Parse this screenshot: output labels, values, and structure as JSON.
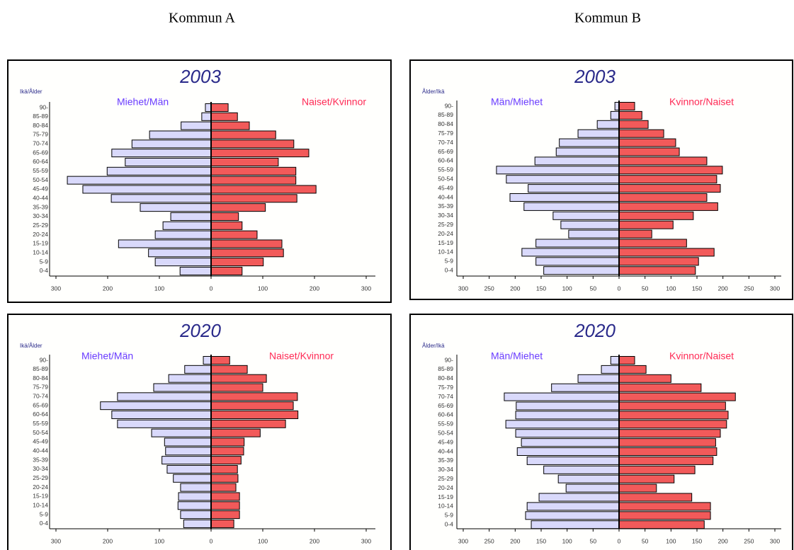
{
  "headers": [
    "Kommun A",
    "Kommun B"
  ],
  "chart_data": [
    {
      "type": "bar",
      "orientation": "horizontal",
      "title": "2003",
      "ylabel": "Ikä/Ålder",
      "categories": [
        "90-",
        "85-89",
        "80-84",
        "75-79",
        "70-74",
        "65-69",
        "60-64",
        "55-59",
        "50-54",
        "45-49",
        "40-44",
        "35-39",
        "30-34",
        "25-29",
        "20-24",
        "15-19",
        "10-14",
        "5-9",
        "0-4"
      ],
      "series": [
        {
          "name": "Miehet/Män",
          "color": "#d9d9fb",
          "side": "left",
          "values": [
            11,
            18,
            58,
            119,
            153,
            192,
            166,
            201,
            278,
            248,
            193,
            137,
            78,
            93,
            108,
            179,
            121,
            108,
            60
          ]
        },
        {
          "name": "Naiset/Kvinnor",
          "color": "#f25a5a",
          "side": "right",
          "values": [
            33,
            51,
            74,
            125,
            160,
            189,
            130,
            164,
            164,
            203,
            166,
            105,
            53,
            60,
            89,
            137,
            140,
            101,
            60
          ]
        }
      ],
      "xlim": [
        -300,
        300
      ],
      "xticks": [
        {
          "value": -300,
          "label": "300"
        },
        {
          "value": -200,
          "label": "200"
        },
        {
          "value": -100,
          "label": "100"
        },
        0,
        100,
        200,
        300
      ]
    },
    {
      "type": "bar",
      "orientation": "horizontal",
      "title": "2003",
      "ylabel": "Ålder/Ikä",
      "categories": [
        "90-",
        "85-89",
        "80-84",
        "75-79",
        "70-74",
        "65-69",
        "60-64",
        "55-59",
        "50-54",
        "45-49",
        "40-44",
        "35-39",
        "30-34",
        "25-29",
        "20-24",
        "15-19",
        "10-14",
        "5-9",
        "0-4"
      ],
      "series": [
        {
          "name": "Män/Miehet",
          "color": "#d9d9fb",
          "side": "left",
          "values": [
            8,
            16,
            42,
            79,
            115,
            121,
            162,
            236,
            217,
            175,
            210,
            183,
            127,
            112,
            97,
            160,
            187,
            160,
            145
          ]
        },
        {
          "name": "Kvinnor/Naiset",
          "color": "#f25a5a",
          "side": "right",
          "values": [
            30,
            44,
            56,
            86,
            109,
            116,
            169,
            199,
            188,
            195,
            169,
            190,
            143,
            104,
            63,
            130,
            183,
            153,
            147
          ]
        }
      ],
      "xlim": [
        -300,
        300
      ],
      "xticks": [
        {
          "value": -300,
          "label": "300"
        },
        {
          "value": -250,
          "label": "250"
        },
        {
          "value": -200,
          "label": "200"
        },
        {
          "value": -150,
          "label": "150"
        },
        {
          "value": -100,
          "label": "100"
        },
        {
          "value": -50,
          "label": "50"
        },
        0,
        50,
        100,
        150,
        200,
        250,
        300
      ]
    },
    {
      "type": "bar",
      "orientation": "horizontal",
      "title": "2020",
      "ylabel": "Ikä/Ålder",
      "categories": [
        "90-",
        "85-89",
        "80-84",
        "75-79",
        "70-74",
        "65-69",
        "60-64",
        "55-59",
        "50-54",
        "45-49",
        "40-44",
        "35-39",
        "30-34",
        "25-29",
        "20-24",
        "15-19",
        "10-14",
        "5-9",
        "0-4"
      ],
      "series": [
        {
          "name": "Miehet/Män",
          "color": "#d9d9fb",
          "side": "left",
          "values": [
            15,
            51,
            82,
            111,
            181,
            214,
            192,
            181,
            115,
            90,
            88,
            95,
            85,
            73,
            59,
            63,
            64,
            59,
            53
          ]
        },
        {
          "name": "Naiset/Kvinnor",
          "color": "#f25a5a",
          "side": "right",
          "values": [
            36,
            70,
            107,
            100,
            167,
            159,
            168,
            144,
            95,
            64,
            63,
            58,
            51,
            52,
            48,
            55,
            55,
            55,
            44
          ]
        }
      ],
      "xlim": [
        -300,
        300
      ],
      "xticks": [
        {
          "value": -300,
          "label": "300"
        },
        {
          "value": -200,
          "label": "200"
        },
        {
          "value": -100,
          "label": "100"
        },
        0,
        100,
        200,
        300
      ]
    },
    {
      "type": "bar",
      "orientation": "horizontal",
      "title": "2020",
      "ylabel": "Ålder/Ikä",
      "categories": [
        "90-",
        "85-89",
        "80-84",
        "75-79",
        "70-74",
        "65-69",
        "60-64",
        "55-59",
        "50-54",
        "45-49",
        "40-44",
        "35-39",
        "30-34",
        "25-29",
        "20-24",
        "15-19",
        "10-14",
        "5-9",
        "0-4"
      ],
      "series": [
        {
          "name": "Män/Miehet",
          "color": "#d9d9fb",
          "side": "left",
          "values": [
            16,
            34,
            79,
            130,
            221,
            198,
            199,
            218,
            199,
            188,
            196,
            177,
            145,
            117,
            102,
            154,
            177,
            180,
            169
          ]
        },
        {
          "name": "Kvinnor/Naiset",
          "color": "#f25a5a",
          "side": "right",
          "values": [
            30,
            52,
            100,
            158,
            224,
            205,
            210,
            207,
            195,
            186,
            188,
            181,
            146,
            106,
            72,
            140,
            176,
            176,
            164
          ]
        }
      ],
      "xlim": [
        -300,
        300
      ],
      "xticks": [
        {
          "value": -300,
          "label": "300"
        },
        {
          "value": -250,
          "label": "250"
        },
        {
          "value": -200,
          "label": "200"
        },
        {
          "value": -150,
          "label": "150"
        },
        {
          "value": -100,
          "label": "100"
        },
        {
          "value": -50,
          "label": "50"
        },
        0,
        50,
        100,
        150,
        200,
        250,
        300
      ]
    }
  ]
}
